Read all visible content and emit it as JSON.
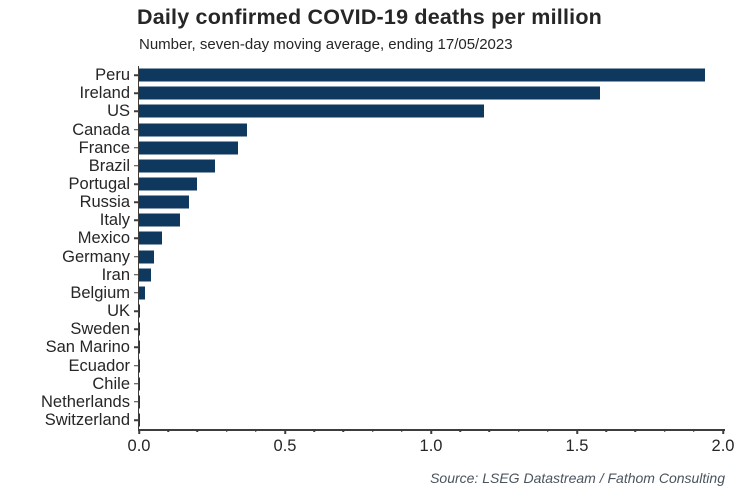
{
  "colors": {
    "bar": "#0f385f",
    "axis": "#3d3d3d",
    "text": "#262626",
    "source_text": "#4a545e",
    "background": "#ffffff"
  },
  "chart_data": {
    "type": "bar",
    "orientation": "horizontal",
    "title": "Daily confirmed COVID-19 deaths per million",
    "subtitle": "Number, seven-day moving average, ending 17/05/2023",
    "source": "Source: LSEG Datastream / Fathom Consulting",
    "categories": [
      "Peru",
      "Ireland",
      "US",
      "Canada",
      "France",
      "Brazil",
      "Portugal",
      "Russia",
      "Italy",
      "Mexico",
      "Germany",
      "Iran",
      "Belgium",
      "UK",
      "Sweden",
      "San Marino",
      "Ecuador",
      "Chile",
      "Netherlands",
      "Switzerland"
    ],
    "values": [
      1.94,
      1.58,
      1.18,
      0.37,
      0.34,
      0.26,
      0.2,
      0.17,
      0.14,
      0.08,
      0.05,
      0.04,
      0.02,
      0.004,
      0.003,
      0.003,
      0.002,
      0.002,
      0.001,
      0.001
    ],
    "xlabel": "",
    "ylabel": "",
    "xlim": [
      0,
      2.0
    ],
    "xticks": [
      0,
      0.5,
      1.0,
      1.5,
      2.0
    ],
    "xtick_labels": [
      "0.0",
      "0.5",
      "1.0",
      "1.5",
      "2.0"
    ],
    "minor_tick_step": 0.1,
    "grid": false,
    "legend": false
  }
}
